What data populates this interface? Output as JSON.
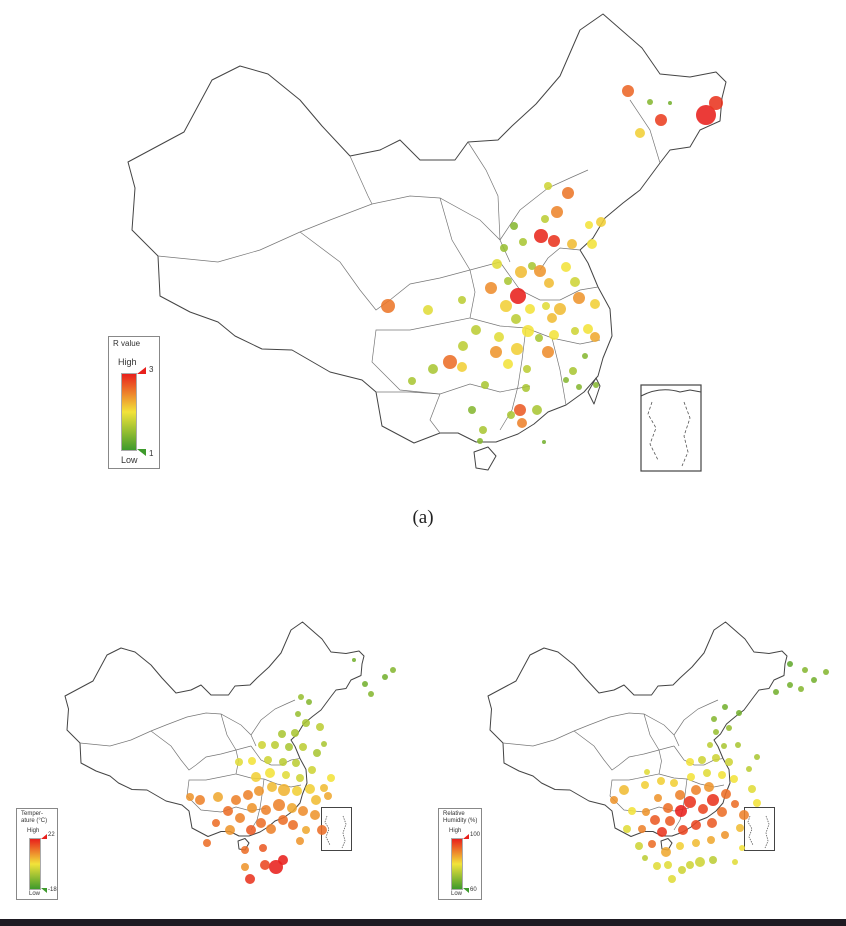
{
  "caption": "(a)",
  "colors": {
    "high": "#e8201c",
    "mid": "#f2e33a",
    "low": "#3e9a2c"
  },
  "maps": [
    {
      "id": "r-value",
      "legend": {
        "title": "R value",
        "high_label": "High",
        "low_label": "Low",
        "max": "3",
        "min": "1"
      },
      "points": [
        [
          706,
          115,
          10,
          1.0
        ],
        [
          716,
          103,
          7,
          0.95
        ],
        [
          661,
          120,
          6,
          0.92
        ],
        [
          628,
          91,
          6,
          0.82
        ],
        [
          650,
          102,
          3,
          0.2
        ],
        [
          640,
          133,
          5,
          0.55
        ],
        [
          670,
          103,
          2,
          0.15
        ],
        [
          548,
          186,
          4,
          0.4
        ],
        [
          568,
          193,
          6,
          0.78
        ],
        [
          557,
          212,
          6,
          0.74
        ],
        [
          545,
          219,
          4,
          0.35
        ],
        [
          541,
          236,
          7,
          0.98
        ],
        [
          554,
          241,
          6,
          0.95
        ],
        [
          572,
          244,
          5,
          0.6
        ],
        [
          589,
          225,
          4,
          0.5
        ],
        [
          601,
          222,
          5,
          0.55
        ],
        [
          592,
          244,
          5,
          0.5
        ],
        [
          566,
          267,
          5,
          0.5
        ],
        [
          575,
          282,
          5,
          0.4
        ],
        [
          514,
          226,
          4,
          0.2
        ],
        [
          523,
          242,
          4,
          0.3
        ],
        [
          504,
          248,
          4,
          0.25
        ],
        [
          497,
          264,
          5,
          0.45
        ],
        [
          521,
          272,
          6,
          0.6
        ],
        [
          532,
          266,
          4,
          0.3
        ],
        [
          540,
          271,
          6,
          0.7
        ],
        [
          549,
          283,
          5,
          0.6
        ],
        [
          518,
          296,
          8,
          1.0
        ],
        [
          508,
          281,
          4,
          0.3
        ],
        [
          491,
          288,
          6,
          0.72
        ],
        [
          506,
          306,
          6,
          0.55
        ],
        [
          516,
          319,
          5,
          0.35
        ],
        [
          530,
          309,
          5,
          0.5
        ],
        [
          546,
          306,
          4,
          0.45
        ],
        [
          560,
          309,
          6,
          0.6
        ],
        [
          579,
          298,
          6,
          0.7
        ],
        [
          595,
          304,
          5,
          0.55
        ],
        [
          588,
          329,
          5,
          0.5
        ],
        [
          595,
          337,
          5,
          0.65
        ],
        [
          575,
          331,
          4,
          0.4
        ],
        [
          552,
          318,
          5,
          0.6
        ],
        [
          528,
          331,
          6,
          0.5
        ],
        [
          517,
          349,
          6,
          0.55
        ],
        [
          499,
          337,
          5,
          0.45
        ],
        [
          496,
          352,
          6,
          0.7
        ],
        [
          508,
          364,
          5,
          0.5
        ],
        [
          527,
          369,
          4,
          0.35
        ],
        [
          548,
          352,
          6,
          0.72
        ],
        [
          554,
          335,
          5,
          0.5
        ],
        [
          539,
          338,
          4,
          0.3
        ],
        [
          573,
          371,
          4,
          0.3
        ],
        [
          579,
          387,
          3,
          0.2
        ],
        [
          566,
          380,
          3,
          0.2
        ],
        [
          526,
          388,
          4,
          0.3
        ],
        [
          537,
          410,
          5,
          0.3
        ],
        [
          520,
          410,
          6,
          0.85
        ],
        [
          522,
          423,
          5,
          0.75
        ],
        [
          511,
          415,
          4,
          0.3
        ],
        [
          476,
          330,
          5,
          0.35
        ],
        [
          463,
          346,
          5,
          0.35
        ],
        [
          462,
          367,
          5,
          0.55
        ],
        [
          433,
          369,
          5,
          0.3
        ],
        [
          450,
          362,
          7,
          0.8
        ],
        [
          472,
          410,
          4,
          0.2
        ],
        [
          485,
          385,
          4,
          0.3
        ],
        [
          412,
          381,
          4,
          0.3
        ],
        [
          388,
          306,
          7,
          0.78
        ],
        [
          428,
          310,
          5,
          0.45
        ],
        [
          462,
          300,
          4,
          0.35
        ],
        [
          483,
          430,
          4,
          0.3
        ],
        [
          480,
          441,
          3,
          0.2
        ],
        [
          596,
          385,
          3,
          0.2
        ],
        [
          585,
          356,
          3,
          0.2
        ],
        [
          544,
          442,
          2,
          0.15
        ]
      ]
    },
    {
      "id": "temperature",
      "legend": {
        "title": "Temper-\nature (°C)",
        "high_label": "High",
        "low_label": "Low",
        "max": "22",
        "min": "-18"
      },
      "points": [
        [
          276,
          867,
          7,
          1.0
        ],
        [
          283,
          860,
          5,
          1.0
        ],
        [
          265,
          865,
          5,
          0.9
        ],
        [
          250,
          879,
          5,
          0.95
        ],
        [
          245,
          867,
          4,
          0.7
        ],
        [
          300,
          841,
          4,
          0.7
        ],
        [
          293,
          825,
          5,
          0.8
        ],
        [
          283,
          820,
          5,
          0.8
        ],
        [
          271,
          829,
          5,
          0.75
        ],
        [
          261,
          823,
          5,
          0.8
        ],
        [
          251,
          830,
          5,
          0.85
        ],
        [
          240,
          818,
          5,
          0.75
        ],
        [
          252,
          808,
          5,
          0.7
        ],
        [
          266,
          810,
          5,
          0.75
        ],
        [
          279,
          805,
          6,
          0.75
        ],
        [
          292,
          808,
          5,
          0.65
        ],
        [
          303,
          811,
          5,
          0.72
        ],
        [
          315,
          815,
          5,
          0.7
        ],
        [
          322,
          830,
          5,
          0.8
        ],
        [
          306,
          830,
          4,
          0.65
        ],
        [
          316,
          800,
          5,
          0.6
        ],
        [
          324,
          788,
          4,
          0.6
        ],
        [
          310,
          789,
          5,
          0.55
        ],
        [
          297,
          791,
          5,
          0.55
        ],
        [
          284,
          790,
          6,
          0.62
        ],
        [
          272,
          787,
          5,
          0.6
        ],
        [
          259,
          791,
          5,
          0.7
        ],
        [
          248,
          795,
          5,
          0.75
        ],
        [
          256,
          777,
          5,
          0.55
        ],
        [
          270,
          773,
          5,
          0.5
        ],
        [
          286,
          775,
          4,
          0.45
        ],
        [
          300,
          778,
          4,
          0.4
        ],
        [
          312,
          770,
          4,
          0.4
        ],
        [
          296,
          763,
          4,
          0.35
        ],
        [
          283,
          762,
          4,
          0.35
        ],
        [
          268,
          760,
          4,
          0.4
        ],
        [
          262,
          745,
          4,
          0.4
        ],
        [
          275,
          745,
          4,
          0.35
        ],
        [
          289,
          747,
          4,
          0.3
        ],
        [
          303,
          747,
          4,
          0.35
        ],
        [
          317,
          753,
          4,
          0.3
        ],
        [
          324,
          744,
          3,
          0.3
        ],
        [
          295,
          733,
          4,
          0.3
        ],
        [
          282,
          734,
          4,
          0.3
        ],
        [
          306,
          723,
          4,
          0.3
        ],
        [
          298,
          714,
          3,
          0.25
        ],
        [
          309,
          702,
          3,
          0.2
        ],
        [
          301,
          697,
          3,
          0.25
        ],
        [
          320,
          727,
          4,
          0.35
        ],
        [
          236,
          800,
          5,
          0.75
        ],
        [
          228,
          811,
          5,
          0.8
        ],
        [
          230,
          830,
          5,
          0.7
        ],
        [
          216,
          823,
          4,
          0.8
        ],
        [
          207,
          843,
          4,
          0.8
        ],
        [
          200,
          800,
          5,
          0.75
        ],
        [
          218,
          797,
          5,
          0.65
        ],
        [
          190,
          797,
          4,
          0.7
        ],
        [
          385,
          677,
          3,
          0.15
        ],
        [
          365,
          684,
          3,
          0.15
        ],
        [
          371,
          694,
          3,
          0.2
        ],
        [
          393,
          670,
          3,
          0.2
        ],
        [
          354,
          660,
          2,
          0.15
        ],
        [
          328,
          796,
          4,
          0.65
        ],
        [
          331,
          778,
          4,
          0.5
        ],
        [
          252,
          761,
          4,
          0.5
        ],
        [
          239,
          762,
          4,
          0.45
        ],
        [
          245,
          850,
          4,
          0.8
        ],
        [
          263,
          848,
          4,
          0.85
        ]
      ]
    },
    {
      "id": "humidity",
      "legend": {
        "title": "Relative\nHumidity (%)",
        "high_label": "High",
        "low_label": "Low",
        "max": "100",
        "min": "60"
      },
      "points": [
        [
          681,
          811,
          6,
          1.0
        ],
        [
          690,
          802,
          6,
          0.95
        ],
        [
          703,
          809,
          5,
          0.9
        ],
        [
          713,
          800,
          6,
          0.95
        ],
        [
          722,
          812,
          5,
          0.8
        ],
        [
          712,
          823,
          5,
          0.85
        ],
        [
          696,
          825,
          5,
          0.9
        ],
        [
          683,
          830,
          5,
          0.9
        ],
        [
          670,
          821,
          5,
          0.85
        ],
        [
          662,
          832,
          5,
          0.95
        ],
        [
          655,
          820,
          5,
          0.85
        ],
        [
          668,
          808,
          5,
          0.8
        ],
        [
          680,
          795,
          5,
          0.75
        ],
        [
          696,
          790,
          5,
          0.75
        ],
        [
          709,
          787,
          5,
          0.7
        ],
        [
          726,
          794,
          5,
          0.8
        ],
        [
          735,
          804,
          4,
          0.8
        ],
        [
          744,
          815,
          5,
          0.75
        ],
        [
          740,
          828,
          4,
          0.6
        ],
        [
          725,
          835,
          4,
          0.7
        ],
        [
          711,
          840,
          4,
          0.65
        ],
        [
          696,
          843,
          4,
          0.6
        ],
        [
          680,
          846,
          4,
          0.55
        ],
        [
          666,
          852,
          5,
          0.65
        ],
        [
          652,
          844,
          4,
          0.8
        ],
        [
          642,
          829,
          4,
          0.75
        ],
        [
          646,
          812,
          4,
          0.7
        ],
        [
          658,
          798,
          4,
          0.7
        ],
        [
          674,
          783,
          4,
          0.55
        ],
        [
          691,
          777,
          4,
          0.5
        ],
        [
          707,
          773,
          4,
          0.45
        ],
        [
          722,
          775,
          4,
          0.5
        ],
        [
          734,
          779,
          4,
          0.5
        ],
        [
          729,
          762,
          4,
          0.4
        ],
        [
          716,
          758,
          4,
          0.4
        ],
        [
          702,
          760,
          4,
          0.4
        ],
        [
          690,
          762,
          4,
          0.5
        ],
        [
          710,
          745,
          3,
          0.35
        ],
        [
          724,
          746,
          3,
          0.3
        ],
        [
          738,
          745,
          3,
          0.3
        ],
        [
          716,
          732,
          3,
          0.25
        ],
        [
          729,
          728,
          3,
          0.25
        ],
        [
          714,
          719,
          3,
          0.2
        ],
        [
          725,
          707,
          3,
          0.15
        ],
        [
          739,
          713,
          3,
          0.15
        ],
        [
          700,
          862,
          5,
          0.4
        ],
        [
          713,
          860,
          4,
          0.35
        ],
        [
          690,
          865,
          4,
          0.4
        ],
        [
          668,
          865,
          4,
          0.45
        ],
        [
          682,
          870,
          4,
          0.4
        ],
        [
          672,
          879,
          4,
          0.45
        ],
        [
          742,
          848,
          3,
          0.5
        ],
        [
          735,
          862,
          3,
          0.45
        ],
        [
          614,
          800,
          4,
          0.7
        ],
        [
          624,
          790,
          5,
          0.6
        ],
        [
          632,
          811,
          4,
          0.5
        ],
        [
          627,
          829,
          4,
          0.45
        ],
        [
          639,
          846,
          4,
          0.4
        ],
        [
          657,
          866,
          4,
          0.45
        ],
        [
          645,
          858,
          3,
          0.35
        ],
        [
          661,
          781,
          4,
          0.55
        ],
        [
          645,
          785,
          4,
          0.55
        ],
        [
          647,
          772,
          3,
          0.45
        ],
        [
          826,
          672,
          3,
          0.2
        ],
        [
          814,
          680,
          3,
          0.15
        ],
        [
          805,
          670,
          3,
          0.2
        ],
        [
          790,
          685,
          3,
          0.15
        ],
        [
          776,
          692,
          3,
          0.15
        ],
        [
          801,
          689,
          3,
          0.2
        ],
        [
          790,
          664,
          3,
          0.1
        ],
        [
          757,
          757,
          3,
          0.3
        ],
        [
          749,
          769,
          3,
          0.35
        ],
        [
          752,
          789,
          4,
          0.45
        ],
        [
          757,
          803,
          4,
          0.5
        ]
      ]
    }
  ]
}
